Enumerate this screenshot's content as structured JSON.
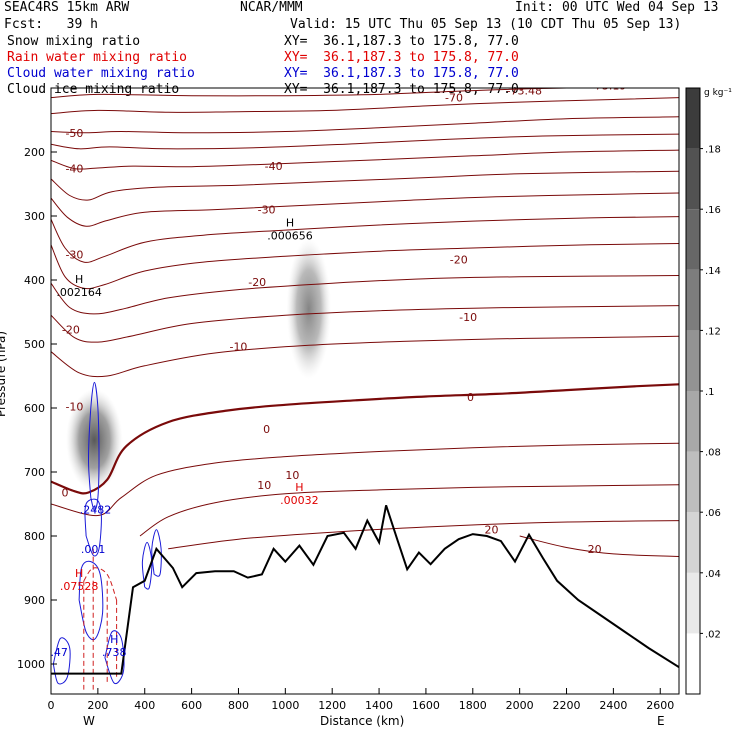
{
  "header": {
    "title_left": "SEAC4RS 15km ARW",
    "title_center": "NCAR/MMM",
    "init": "Init: 00 UTC Wed 04 Sep 13",
    "fcst": "Fcst:   39 h",
    "valid": "Valid: 15 UTC Thu 05 Sep 13 (10 CDT Thu 05 Sep 13)"
  },
  "fields": [
    {
      "name": "Snow mixing ratio",
      "xy": "XY=  36.1,187.3 to 175.8, 77.0",
      "color": "#000000"
    },
    {
      "name": "Rain water mixing ratio",
      "xy": "XY=  36.1,187.3 to 175.8, 77.0",
      "color": "#e00000"
    },
    {
      "name": "Cloud water mixing ratio",
      "xy": "XY=  36.1,187.3 to 175.8, 77.0",
      "color": "#0000d0"
    },
    {
      "name": "Cloud ice mixing ratio",
      "xy": "XY=  36.1,187.3 to 175.8, 77.0",
      "color": "#000000"
    }
  ],
  "colorbar": {
    "unit": "g kg⁻¹",
    "levels": [
      ".02",
      ".04",
      ".06",
      ".08",
      ".1",
      ".12",
      ".14",
      ".16",
      ".18"
    ]
  },
  "chart_data": {
    "type": "contour",
    "xlabel": "Distance (km)",
    "ylabel": "Pressure (hPa)",
    "xlim": [
      0,
      2680
    ],
    "ylim": [
      1050,
      100
    ],
    "xticks": [
      0,
      200,
      400,
      600,
      800,
      1000,
      1200,
      1400,
      1600,
      1800,
      2000,
      2200,
      2400,
      2600
    ],
    "yticks": [
      200,
      300,
      400,
      500,
      600,
      700,
      800,
      900,
      1000
    ],
    "x_end_labels": {
      "left": "W",
      "right": "E"
    },
    "temperature_contours": [
      {
        "level": -70,
        "points": [
          [
            0,
            115
          ],
          [
            200,
            110
          ],
          [
            600,
            112
          ],
          [
            1000,
            112
          ],
          [
            1400,
            110
          ],
          [
            1800,
            104
          ],
          [
            2200,
            100
          ],
          [
            2680,
            100
          ]
        ]
      },
      {
        "level": -60,
        "points": [
          [
            0,
            140
          ],
          [
            200,
            135
          ],
          [
            500,
            138
          ],
          [
            800,
            137
          ],
          [
            1200,
            135
          ],
          [
            1600,
            128
          ],
          [
            2000,
            122
          ],
          [
            2400,
            118
          ],
          [
            2680,
            115
          ]
        ]
      },
      {
        "level": -50,
        "points": [
          [
            0,
            168
          ],
          [
            150,
            170
          ],
          [
            300,
            168
          ],
          [
            600,
            170
          ],
          [
            1000,
            168
          ],
          [
            1400,
            162
          ],
          [
            1800,
            155
          ],
          [
            2200,
            148
          ],
          [
            2680,
            145
          ]
        ]
      },
      {
        "level": -45,
        "points": [
          [
            0,
            188
          ],
          [
            120,
            195
          ],
          [
            250,
            192
          ],
          [
            500,
            195
          ],
          [
            900,
            193
          ],
          [
            1300,
            187
          ],
          [
            1700,
            180
          ],
          [
            2100,
            175
          ],
          [
            2680,
            172
          ]
        ]
      },
      {
        "level": -40,
        "points": [
          [
            0,
            213
          ],
          [
            100,
            226
          ],
          [
            200,
            225
          ],
          [
            350,
            222
          ],
          [
            600,
            223
          ],
          [
            1000,
            218
          ],
          [
            1400,
            212
          ],
          [
            1800,
            206
          ],
          [
            2200,
            200
          ],
          [
            2680,
            197
          ]
        ]
      },
      {
        "level": -35,
        "points": [
          [
            0,
            242
          ],
          [
            80,
            268
          ],
          [
            160,
            275
          ],
          [
            260,
            262
          ],
          [
            450,
            255
          ],
          [
            800,
            252
          ],
          [
            1200,
            246
          ],
          [
            1600,
            240
          ],
          [
            2000,
            234
          ],
          [
            2680,
            230
          ]
        ]
      },
      {
        "level": -30,
        "points": [
          [
            0,
            272
          ],
          [
            70,
            302
          ],
          [
            150,
            316
          ],
          [
            240,
            307
          ],
          [
            400,
            294
          ],
          [
            700,
            290
          ],
          [
            1100,
            283
          ],
          [
            1500,
            276
          ],
          [
            1900,
            270
          ],
          [
            2400,
            266
          ],
          [
            2680,
            264
          ]
        ]
      },
      {
        "level": -25,
        "points": [
          [
            0,
            305
          ],
          [
            60,
            350
          ],
          [
            140,
            372
          ],
          [
            230,
            363
          ],
          [
            400,
            341
          ],
          [
            650,
            330
          ],
          [
            1000,
            322
          ],
          [
            1400,
            314
          ],
          [
            1800,
            308
          ],
          [
            2300,
            303
          ],
          [
            2680,
            301
          ]
        ]
      },
      {
        "level": -20,
        "points": [
          [
            0,
            345
          ],
          [
            60,
            395
          ],
          [
            140,
            413
          ],
          [
            230,
            407
          ],
          [
            400,
            386
          ],
          [
            650,
            372
          ],
          [
            1000,
            363
          ],
          [
            1400,
            355
          ],
          [
            1800,
            350
          ],
          [
            2300,
            345
          ],
          [
            2680,
            343
          ]
        ]
      },
      {
        "level": -15,
        "points": [
          [
            0,
            405
          ],
          [
            80,
            443
          ],
          [
            180,
            453
          ],
          [
            300,
            446
          ],
          [
            500,
            428
          ],
          [
            800,
            415
          ],
          [
            1200,
            405
          ],
          [
            1600,
            398
          ],
          [
            2000,
            395
          ],
          [
            2680,
            393
          ]
        ]
      },
      {
        "level": -10,
        "points": [
          [
            0,
            455
          ],
          [
            100,
            490
          ],
          [
            200,
            497
          ],
          [
            350,
            487
          ],
          [
            600,
            468
          ],
          [
            1000,
            455
          ],
          [
            1400,
            448
          ],
          [
            1800,
            444
          ],
          [
            2200,
            442
          ],
          [
            2680,
            440
          ]
        ]
      },
      {
        "level": -5,
        "points": [
          [
            0,
            512
          ],
          [
            120,
            545
          ],
          [
            240,
            550
          ],
          [
            400,
            534
          ],
          [
            700,
            514
          ],
          [
            1100,
            502
          ],
          [
            1500,
            496
          ],
          [
            1900,
            492
          ],
          [
            2300,
            490
          ],
          [
            2680,
            488
          ]
        ]
      },
      {
        "level": 0,
        "bold": true,
        "points": [
          [
            0,
            715
          ],
          [
            100,
            730
          ],
          [
            160,
            732
          ],
          [
            240,
            712
          ],
          [
            320,
            660
          ],
          [
            500,
            622
          ],
          [
            750,
            604
          ],
          [
            1000,
            595
          ],
          [
            1300,
            588
          ],
          [
            1600,
            582
          ],
          [
            1900,
            578
          ],
          [
            2200,
            572
          ],
          [
            2500,
            566
          ],
          [
            2680,
            563
          ]
        ]
      },
      {
        "level": 5,
        "points": [
          [
            0,
            750
          ],
          [
            200,
            768
          ],
          [
            300,
            740
          ],
          [
            450,
            705
          ],
          [
            700,
            686
          ],
          [
            1000,
            676
          ],
          [
            1400,
            668
          ],
          [
            1800,
            662
          ],
          [
            2200,
            658
          ],
          [
            2680,
            655
          ]
        ]
      },
      {
        "level": 10,
        "points": [
          [
            380,
            800
          ],
          [
            500,
            770
          ],
          [
            700,
            748
          ],
          [
            1000,
            734
          ],
          [
            1400,
            728
          ],
          [
            1800,
            724
          ],
          [
            2200,
            722
          ],
          [
            2680,
            720
          ]
        ]
      },
      {
        "level": 15,
        "points": [
          [
            500,
            820
          ],
          [
            800,
            805
          ],
          [
            1200,
            794
          ],
          [
            1600,
            786
          ],
          [
            2000,
            780
          ],
          [
            2400,
            777
          ],
          [
            2680,
            776
          ]
        ]
      },
      {
        "level": 20,
        "points": [
          [
            2000,
            800
          ],
          [
            2200,
            818
          ],
          [
            2400,
            828
          ],
          [
            2680,
            832
          ]
        ]
      }
    ],
    "contour_labels": [
      {
        "text": "-70",
        "x": 1720,
        "y": 115
      },
      {
        "text": "-50",
        "x": 100,
        "y": 170
      },
      {
        "text": "-40",
        "x": 100,
        "y": 226
      },
      {
        "text": "-40",
        "x": 950,
        "y": 222
      },
      {
        "text": "-30",
        "x": 920,
        "y": 290
      },
      {
        "text": "-30",
        "x": 100,
        "y": 360
      },
      {
        "text": "-20",
        "x": 1740,
        "y": 368
      },
      {
        "text": "-20",
        "x": 880,
        "y": 403
      },
      {
        "text": "-20",
        "x": 85,
        "y": 477
      },
      {
        "text": "-10",
        "x": 1780,
        "y": 458
      },
      {
        "text": "-10",
        "x": 800,
        "y": 504
      },
      {
        "text": "-10",
        "x": 100,
        "y": 598
      },
      {
        "text": "0",
        "x": 1790,
        "y": 583
      },
      {
        "text": "0",
        "x": 920,
        "y": 633
      },
      {
        "text": "0",
        "x": 60,
        "y": 732
      },
      {
        "text": "10",
        "x": 1030,
        "y": 705
      },
      {
        "text": "10",
        "x": 910,
        "y": 720
      },
      {
        "text": "20",
        "x": 2320,
        "y": 820
      },
      {
        "text": "20",
        "x": 1880,
        "y": 790
      }
    ],
    "max_labels": [
      {
        "text": "H",
        "sub": ".002164",
        "x": 120,
        "y": 420,
        "color": "#000000"
      },
      {
        "text": "H",
        "sub": ".000656",
        "x": 1020,
        "y": 332,
        "color": "#000000"
      },
      {
        "text": "",
        "sub": ".2482",
        "x": 190,
        "y": 760,
        "color": "#0000d0"
      },
      {
        "text": "H",
        "sub": ".00032",
        "x": 1060,
        "y": 745,
        "color": "#e00000"
      },
      {
        "text": "H",
        "sub": ".07528",
        "x": 120,
        "y": 880,
        "color": "#e00000"
      },
      {
        "text": "H",
        "sub": ".738",
        "x": 270,
        "y": 983,
        "color": "#0000d0"
      },
      {
        "text": "",
        "sub": ".001",
        "x": 160,
        "y": 1063,
        "color": "#e00000"
      },
      {
        "text": "",
        "sub": ".001",
        "x": 180,
        "y": 822,
        "color": "#0000d0"
      },
      {
        "text": "",
        "sub": ".47",
        "x": 35,
        "y": 983,
        "color": "#0000d0"
      }
    ],
    "top_edge_labels": [
      {
        "text": "-73.48",
        "x": 2020,
        "y": 110
      },
      {
        "text": "-73.19",
        "x": 2380,
        "y": 102
      }
    ],
    "terrain": {
      "points": [
        [
          0,
          1015
        ],
        [
          300,
          1015
        ],
        [
          350,
          880
        ],
        [
          400,
          870
        ],
        [
          450,
          820
        ],
        [
          520,
          850
        ],
        [
          560,
          880
        ],
        [
          620,
          858
        ],
        [
          700,
          855
        ],
        [
          780,
          855
        ],
        [
          840,
          865
        ],
        [
          900,
          860
        ],
        [
          950,
          820
        ],
        [
          1000,
          840
        ],
        [
          1060,
          815
        ],
        [
          1120,
          845
        ],
        [
          1180,
          800
        ],
        [
          1250,
          795
        ],
        [
          1300,
          820
        ],
        [
          1350,
          776
        ],
        [
          1400,
          810
        ],
        [
          1430,
          752
        ],
        [
          1480,
          808
        ],
        [
          1520,
          852
        ],
        [
          1570,
          826
        ],
        [
          1620,
          844
        ],
        [
          1680,
          820
        ],
        [
          1740,
          805
        ],
        [
          1800,
          797
        ],
        [
          1860,
          800
        ],
        [
          1920,
          808
        ],
        [
          1980,
          840
        ],
        [
          2040,
          798
        ],
        [
          2100,
          835
        ],
        [
          2160,
          870
        ],
        [
          2250,
          900
        ],
        [
          2350,
          925
        ],
        [
          2450,
          950
        ],
        [
          2550,
          975
        ],
        [
          2680,
          1005
        ]
      ]
    },
    "shaded": [
      {
        "x": 185,
        "y": 650,
        "rx": 28,
        "ry": 80,
        "max": 0.18
      },
      {
        "x": 1100,
        "y": 445,
        "rx": 22,
        "ry": 110,
        "max": 0.06
      }
    ]
  }
}
